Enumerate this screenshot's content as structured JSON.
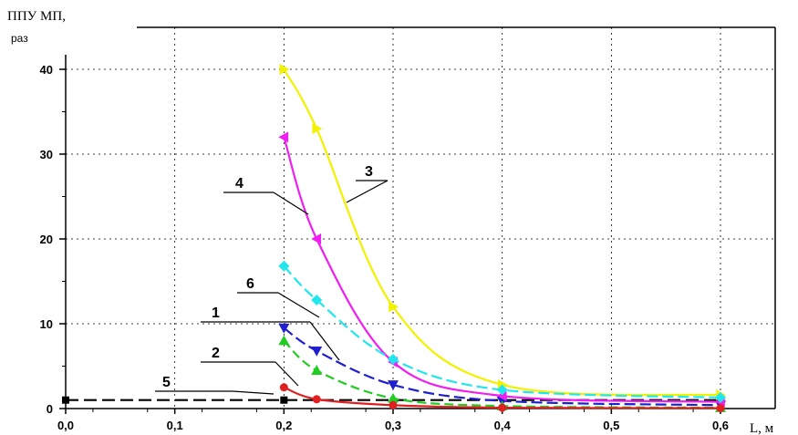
{
  "chart_data": {
    "type": "line",
    "ylabel_line1": "ППУ МП,",
    "ylabel_line2": "раз",
    "xlabel": "L, м",
    "xlim": [
      0.0,
      0.6
    ],
    "ylim": [
      0,
      40
    ],
    "grid": true,
    "xticks": [
      "0,0",
      "0,1",
      "0,2",
      "0,3",
      "0,4",
      "0,5",
      "0,6"
    ],
    "yticks": [
      "0",
      "10",
      "20",
      "30",
      "40"
    ],
    "series": [
      {
        "name": "1",
        "color": "#1f1fd0",
        "marker": "triangle-down",
        "dash": "12 5",
        "x": [
          0.2,
          0.23,
          0.3,
          0.4,
          0.6
        ],
        "y": [
          9.5,
          6.8,
          2.8,
          0.9,
          0.4
        ]
      },
      {
        "name": "2",
        "color": "#22cc22",
        "marker": "triangle-up",
        "dash": "10 5",
        "x": [
          0.2,
          0.23,
          0.3,
          0.4,
          0.6
        ],
        "y": [
          8.0,
          4.5,
          1.2,
          0.3,
          0.1
        ]
      },
      {
        "name": "3",
        "color": "#f2f200",
        "marker": "triangle-right",
        "dash": "",
        "x": [
          0.2,
          0.23,
          0.3,
          0.4,
          0.6
        ],
        "y": [
          40.0,
          33.0,
          12.0,
          2.8,
          1.6
        ]
      },
      {
        "name": "4",
        "color": "#f01ef0",
        "marker": "triangle-left",
        "dash": "",
        "x": [
          0.2,
          0.23,
          0.3,
          0.4,
          0.6
        ],
        "y": [
          32.0,
          20.0,
          5.5,
          1.5,
          0.8
        ]
      },
      {
        "name": "5",
        "color": "#e02020",
        "marker": "circle",
        "dash": "",
        "x": [
          0.2,
          0.23,
          0.3,
          0.4,
          0.6
        ],
        "y": [
          2.5,
          1.1,
          0.4,
          0.1,
          0.05
        ]
      },
      {
        "name": "6",
        "color": "#22e6ee",
        "marker": "diamond",
        "dash": "12 5",
        "x": [
          0.2,
          0.23,
          0.3,
          0.4,
          0.6
        ],
        "y": [
          16.8,
          12.8,
          5.8,
          2.2,
          1.3
        ]
      },
      {
        "name": "",
        "color": "#000000",
        "marker": "square",
        "dash": "14 6",
        "x": [
          0.0,
          0.2,
          0.6
        ],
        "y": [
          1.0,
          1.0,
          1.0
        ]
      }
    ],
    "callouts": [
      {
        "label": "1",
        "target_series": 0
      },
      {
        "label": "2",
        "target_series": 1
      },
      {
        "label": "3",
        "target_series": 2
      },
      {
        "label": "4",
        "target_series": 3
      },
      {
        "label": "5",
        "target_series": 4
      },
      {
        "label": "6",
        "target_series": 5
      }
    ]
  }
}
